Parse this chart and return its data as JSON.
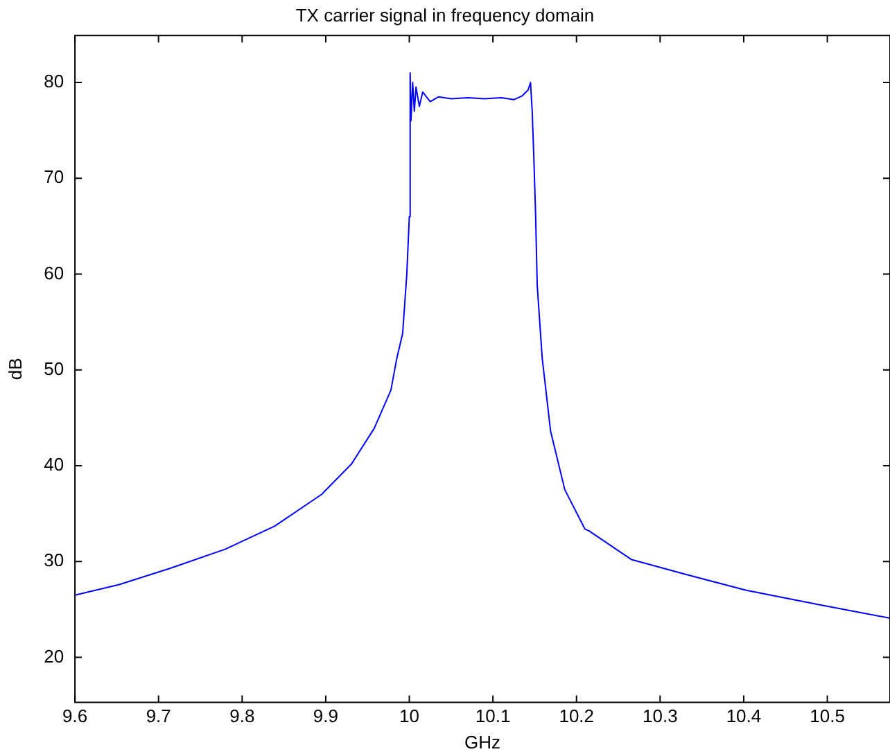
{
  "chart_data": {
    "type": "line",
    "title": "TX carrier signal in frequency domain",
    "xlabel": "GHz",
    "ylabel": "dB",
    "series": [
      {
        "color": "#0000ff",
        "x": [
          9.6,
          9.653,
          9.714,
          9.78,
          9.839,
          9.895,
          9.931,
          9.958,
          9.978,
          9.985,
          9.992,
          9.997,
          10.0,
          10.001,
          10.002,
          10.004,
          10.006,
          10.008,
          10.012,
          10.016,
          10.025,
          10.035,
          10.05,
          10.07,
          10.09,
          10.11,
          10.125,
          10.135,
          10.142,
          10.145,
          10.147,
          10.149,
          10.151,
          10.153,
          10.159,
          10.169,
          10.186,
          10.21,
          10.215,
          10.266,
          10.329,
          10.403,
          10.49,
          10.575
        ],
        "values": [
          26.5,
          27.6,
          29.3,
          31.3,
          33.7,
          37.0,
          40.2,
          43.9,
          47.9,
          51.2,
          53.8,
          60,
          66,
          81,
          76,
          80,
          77,
          79.5,
          77.5,
          79,
          78,
          78.5,
          78.3,
          78.4,
          78.3,
          78.4,
          78.2,
          78.6,
          79.2,
          80,
          77,
          72,
          66.4,
          58.8,
          51.2,
          43.6,
          37.5,
          33.4,
          33.2,
          30.2,
          28.7,
          27.0,
          25.5,
          24.1
        ]
      }
    ],
    "xlim": [
      9.6,
      10.575
    ],
    "xticks": [
      9.6,
      9.7,
      9.8,
      9.9,
      10,
      10.1,
      10.2,
      10.3,
      10.4,
      10.5
    ],
    "ylim": [
      15.3,
      84.9
    ],
    "yticks": [
      20,
      30,
      40,
      50,
      60,
      70,
      80
    ],
    "grid": false,
    "legend": false,
    "marker": "none",
    "line_style": "solid"
  }
}
